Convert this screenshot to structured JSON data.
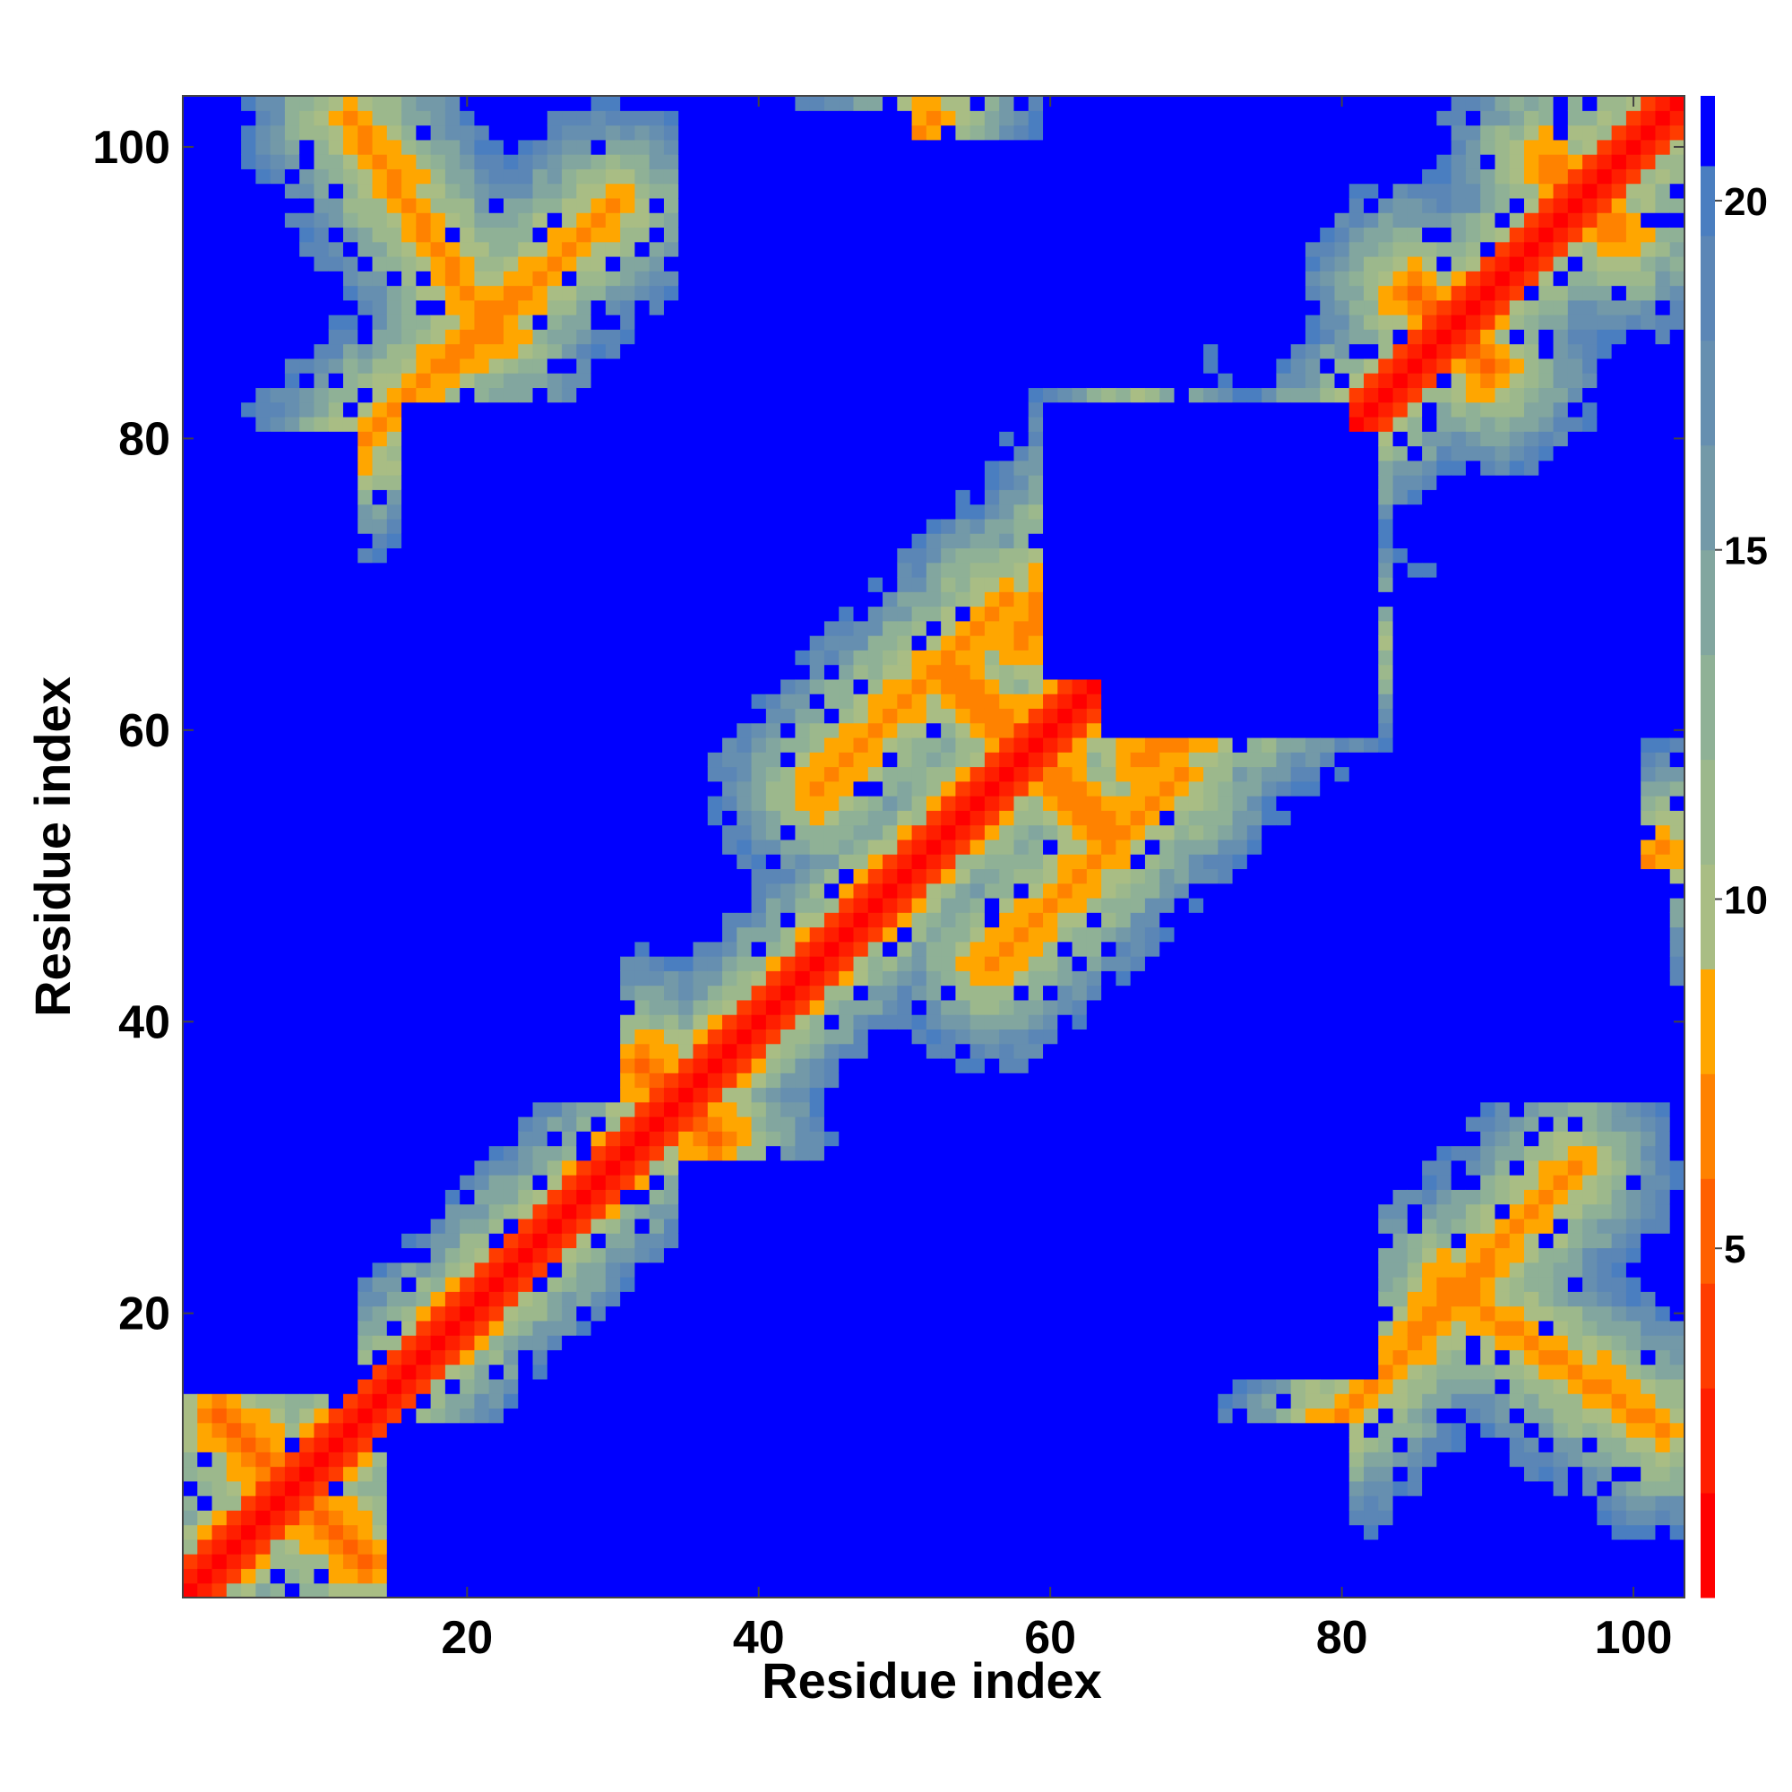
{
  "chart_data": {
    "type": "heatmap",
    "title": "",
    "xlabel": "Residue index",
    "ylabel": "Residue index",
    "xlim": [
      0.5,
      103.5
    ],
    "ylim": [
      0.5,
      103.5
    ],
    "x_ticks": [
      20,
      40,
      60,
      80,
      100
    ],
    "y_ticks": [
      20,
      40,
      60,
      80,
      100
    ],
    "colorbar": {
      "range": [
        0,
        21.5
      ],
      "ticks": [
        5,
        10,
        15,
        20
      ],
      "levels": [
        {
          "from": 0,
          "to": 1.5,
          "color": "#ff0000"
        },
        {
          "from": 1.5,
          "to": 3.0,
          "color": "#ff1e00"
        },
        {
          "from": 3.0,
          "to": 4.5,
          "color": "#ff3c00"
        },
        {
          "from": 4.5,
          "to": 6.0,
          "color": "#ff6000"
        },
        {
          "from": 6.0,
          "to": 7.5,
          "color": "#ff8200"
        },
        {
          "from": 7.5,
          "to": 9.0,
          "color": "#ffa600"
        },
        {
          "from": 9.0,
          "to": 10.5,
          "color": "#a9bd84"
        },
        {
          "from": 10.5,
          "to": 12.0,
          "color": "#9cb88c"
        },
        {
          "from": 12.0,
          "to": 13.5,
          "color": "#8fb196"
        },
        {
          "from": 13.5,
          "to": 15.0,
          "color": "#82a69f"
        },
        {
          "from": 15.0,
          "to": 16.5,
          "color": "#7399a8"
        },
        {
          "from": 16.5,
          "to": 18.0,
          "color": "#668fb0"
        },
        {
          "from": 18.0,
          "to": 19.5,
          "color": "#5b86b6"
        },
        {
          "from": 19.5,
          "to": 20.5,
          "color": "#4a7ec0"
        },
        {
          "from": 20.5,
          "to": 21.5,
          "color": "#0000ff"
        }
      ]
    },
    "n_residues": 103,
    "matrix_description": "Symmetric residue-residue distance matrix; values from 0 on the diagonal to above 20 (clipped). Close-contact bands (values < 9) run parallel and anti-parallel to the diagonal between secondary-structure segments.",
    "diagonal_value": 0,
    "cap_value": 21,
    "contact_bands": [
      {
        "i": [
          3,
          13
        ],
        "j": [
          3,
          13
        ],
        "min": 5.5,
        "kind": "antiparallel"
      },
      {
        "i": [
          12,
          22
        ],
        "j": [
          87,
          102
        ],
        "min": 6.5,
        "kind": "antiparallel"
      },
      {
        "i": [
          12,
          30
        ],
        "j": [
          79,
          96
        ],
        "min": 6.5,
        "kind": "parallel"
      },
      {
        "i": [
          32,
          37
        ],
        "j": [
          32,
          37
        ],
        "min": 5.5,
        "kind": "antiparallel"
      },
      {
        "i": [
          43,
          52
        ],
        "j": [
          93,
          102
        ],
        "min": 6.5,
        "kind": "parallel"
      },
      {
        "i": [
          44,
          57
        ],
        "j": [
          56,
          69
        ],
        "min": 6.5,
        "kind": "parallel"
      },
      {
        "i": [
          53,
          64
        ],
        "j": [
          53,
          64
        ],
        "min": 6.0,
        "kind": "antiparallel"
      },
      {
        "i": [
          58,
          66
        ],
        "j": [
          66,
          80
        ],
        "min": 6.0,
        "kind": "parallel"
      },
      {
        "i": [
          85,
          90
        ],
        "j": [
          85,
          90
        ],
        "min": 5.5,
        "kind": "antiparallel"
      },
      {
        "i": [
          94,
          99
        ],
        "j": [
          94,
          99
        ],
        "min": 6.0,
        "kind": "antiparallel"
      }
    ],
    "far_regions": [
      {
        "i": [
          16,
          30
        ],
        "j": [
          59,
          82
        ]
      },
      {
        "i": [
          16,
          30
        ],
        "j": [
          35,
          50
        ]
      },
      {
        "i": [
          35,
          50
        ],
        "j": [
          75,
          102
        ]
      },
      {
        "i": [
          64,
          82
        ],
        "j": [
          60,
          80
        ]
      },
      {
        "i": [
          1,
          12
        ],
        "j": [
          15,
          80
        ]
      },
      {
        "i": [
          84,
          100
        ],
        "j": [
          50,
          70
        ]
      }
    ]
  }
}
